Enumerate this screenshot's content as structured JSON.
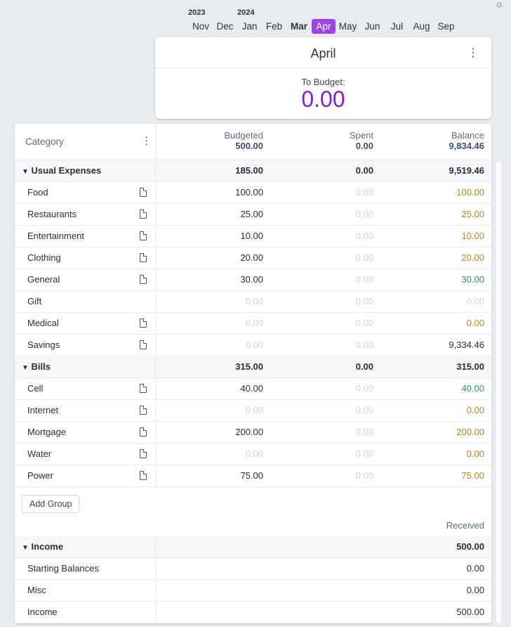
{
  "theme_icon": "sun-icon",
  "years": [
    "2023",
    "2024"
  ],
  "months": [
    {
      "label": "Nov"
    },
    {
      "label": "Dec"
    },
    {
      "label": "Jan"
    },
    {
      "label": "Feb"
    },
    {
      "label": "Mar",
      "state": "current"
    },
    {
      "label": "Apr",
      "state": "selected"
    },
    {
      "label": "May"
    },
    {
      "label": "Jun"
    },
    {
      "label": "Jul"
    },
    {
      "label": "Aug"
    },
    {
      "label": "Sep"
    }
  ],
  "month_card": {
    "title": "April",
    "to_budget_label": "To Budget:",
    "to_budget_value": "0.00"
  },
  "header": {
    "category": "Category",
    "budgeted": "Budgeted",
    "budgeted_total": "500.00",
    "spent": "Spent",
    "spent_total": "0.00",
    "balance": "Balance",
    "balance_total": "9,834.46"
  },
  "groups": [
    {
      "name": "Usual Expenses",
      "budgeted": "185.00",
      "spent": "0.00",
      "balance": "9,519.46",
      "categories": [
        {
          "name": "Food",
          "note": true,
          "budgeted": "100.00",
          "spent": "0.00",
          "balance": "100.00",
          "balance_color": "yellow"
        },
        {
          "name": "Restaurants",
          "note": true,
          "budgeted": "25.00",
          "spent": "0.00",
          "balance": "25.00",
          "balance_color": "yellow"
        },
        {
          "name": "Entertainment",
          "note": true,
          "budgeted": "10.00",
          "spent": "0.00",
          "balance": "10.00",
          "balance_color": "yellow"
        },
        {
          "name": "Clothing",
          "note": true,
          "budgeted": "20.00",
          "spent": "0.00",
          "balance": "20.00",
          "balance_color": "yellow"
        },
        {
          "name": "General",
          "note": true,
          "budgeted": "30.00",
          "spent": "0.00",
          "balance": "30.00",
          "balance_color": "green"
        },
        {
          "name": "Gift",
          "note": false,
          "budgeted": "0.00",
          "spent": "0.00",
          "balance": "0.00",
          "balance_color": "faint"
        },
        {
          "name": "Medical",
          "note": true,
          "budgeted": "0.00",
          "spent": "0.00",
          "balance": "0.00",
          "balance_color": "yellow"
        },
        {
          "name": "Savings",
          "note": true,
          "budgeted": "0.00",
          "spent": "0.00",
          "balance": "9,334.46",
          "balance_color": "normal"
        }
      ]
    },
    {
      "name": "Bills",
      "budgeted": "315.00",
      "spent": "0.00",
      "balance": "315.00",
      "categories": [
        {
          "name": "Cell",
          "note": true,
          "budgeted": "40.00",
          "spent": "0.00",
          "balance": "40.00",
          "balance_color": "green"
        },
        {
          "name": "Internet",
          "note": true,
          "budgeted": "0.00",
          "spent": "0.00",
          "balance": "0.00",
          "balance_color": "yellow"
        },
        {
          "name": "Mortgage",
          "note": true,
          "budgeted": "200.00",
          "spent": "0.00",
          "balance": "200.00",
          "balance_color": "yellow"
        },
        {
          "name": "Water",
          "note": true,
          "budgeted": "0.00",
          "spent": "0.00",
          "balance": "0.00",
          "balance_color": "yellow"
        },
        {
          "name": "Power",
          "note": true,
          "budgeted": "75.00",
          "spent": "0.00",
          "balance": "75.00",
          "balance_color": "yellow"
        }
      ]
    }
  ],
  "add_group_label": "Add Group",
  "received_label": "Received",
  "income": {
    "name": "Income",
    "received": "500.00",
    "categories": [
      {
        "name": "Starting Balances",
        "received": "0.00"
      },
      {
        "name": "Misc",
        "received": "0.00"
      },
      {
        "name": "Income",
        "received": "500.00"
      }
    ]
  },
  "colors": {
    "accent": "#8719e0",
    "selected_month": "#9a45e8",
    "yellow": "#b7871b",
    "green": "#2f8f6f",
    "faint": "#ccd3db"
  }
}
